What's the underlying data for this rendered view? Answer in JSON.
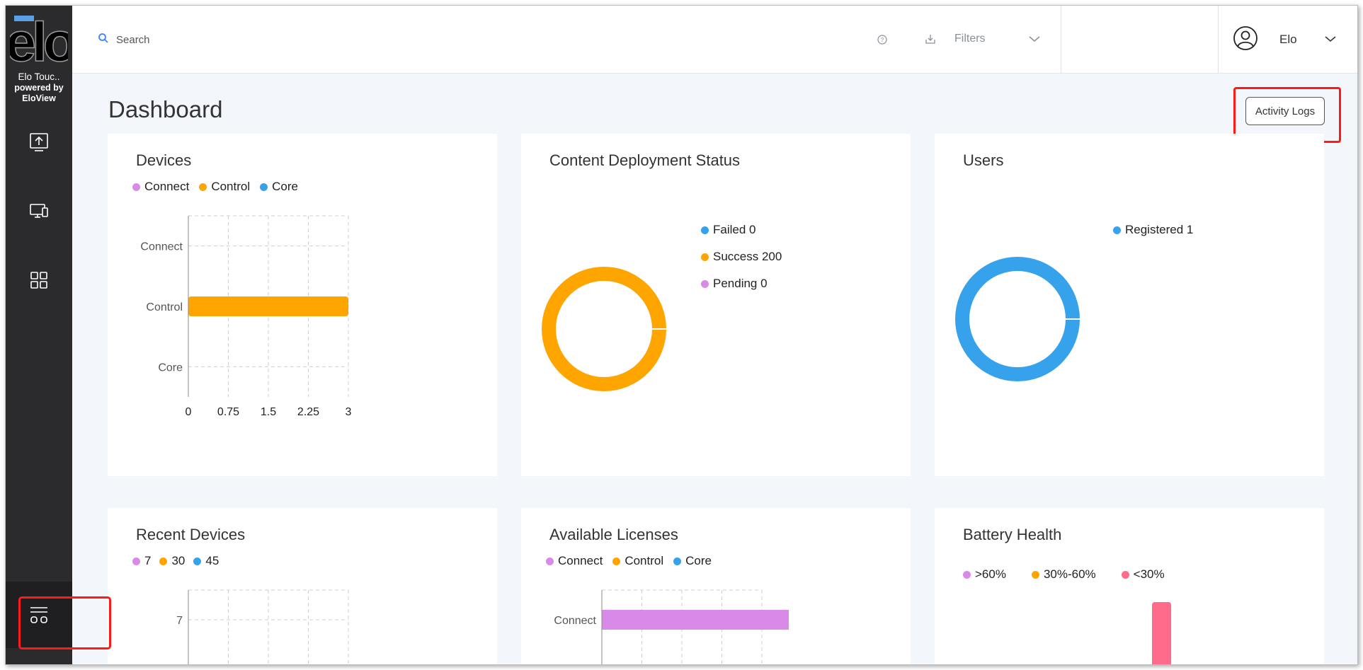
{
  "sidebar": {
    "logo_text": "elo",
    "brand_line1": "Elo Touc..",
    "brand_line2": "powered by EloView",
    "items": [
      {
        "icon": "upload-icon"
      },
      {
        "icon": "devices-icon"
      },
      {
        "icon": "apps-grid-icon"
      }
    ],
    "bottom_icon": "menu-toggle-icon"
  },
  "topbar": {
    "search_placeholder": "Search",
    "filters_label": "Filters",
    "user_name": "Elo"
  },
  "header": {
    "title": "Dashboard",
    "activity_logs_label": "Activity Logs"
  },
  "colors": {
    "connect": "#d98ae8",
    "control": "#ffa500",
    "core": "#36a2eb",
    "critical": "#ff6b8a",
    "highlight": "#ff1a1a"
  },
  "cards": {
    "devices": {
      "title": "Devices",
      "legend": [
        "Connect",
        "Control",
        "Core"
      ]
    },
    "content_deployment": {
      "title": "Content Deployment Status",
      "legend": [
        "Failed 0",
        "Success 200",
        "Pending 0"
      ]
    },
    "users": {
      "title": "Users",
      "legend": [
        "Registered 1"
      ]
    },
    "recent_devices": {
      "title": "Recent Devices",
      "legend": [
        "7",
        "30",
        "45"
      ]
    },
    "available_licenses": {
      "title": "Available Licenses",
      "legend": [
        "Connect",
        "Control",
        "Core"
      ]
    },
    "battery_health": {
      "title": "Battery Health",
      "legend": [
        ">60%",
        "30%-60%",
        "<30%"
      ]
    }
  },
  "chart_data": [
    {
      "type": "bar",
      "orientation": "horizontal",
      "title": "Devices",
      "categories": [
        "Connect",
        "Control",
        "Core"
      ],
      "series": [
        {
          "name": "Connect",
          "values": [
            0,
            0,
            0
          ]
        },
        {
          "name": "Control",
          "values": [
            0,
            3,
            0
          ]
        },
        {
          "name": "Core",
          "values": [
            0,
            0,
            0
          ]
        }
      ],
      "xticks": [
        "0",
        "0.75",
        "1.5",
        "2.25",
        "3"
      ],
      "xlim": [
        0,
        3
      ],
      "grid": true,
      "legend": "top-left"
    },
    {
      "type": "pie",
      "donut": true,
      "title": "Content Deployment Status",
      "labels": [
        "Failed",
        "Success",
        "Pending"
      ],
      "values": [
        0,
        200,
        0
      ],
      "legend": "right"
    },
    {
      "type": "pie",
      "donut": true,
      "title": "Users",
      "labels": [
        "Registered"
      ],
      "values": [
        1
      ],
      "legend": "right"
    },
    {
      "type": "bar",
      "orientation": "horizontal",
      "title": "Recent Devices",
      "categories": [
        "7"
      ],
      "series": [
        {
          "name": "7",
          "values": [
            0
          ]
        },
        {
          "name": "30",
          "values": [
            0
          ]
        },
        {
          "name": "45",
          "values": [
            0
          ]
        }
      ],
      "grid": true,
      "legend": "top-left"
    },
    {
      "type": "bar",
      "orientation": "horizontal",
      "title": "Available Licenses",
      "categories": [
        "Connect"
      ],
      "series": [
        {
          "name": "Connect",
          "values": [
            0.7
          ]
        },
        {
          "name": "Control",
          "values": [
            0
          ]
        },
        {
          "name": "Core",
          "values": [
            0
          ]
        }
      ],
      "grid": true,
      "legend": "top-left"
    },
    {
      "type": "bar",
      "title": "Battery Health",
      "series": [
        {
          "name": ">60%",
          "values": [
            0
          ]
        },
        {
          "name": "30%-60%",
          "values": [
            0
          ]
        },
        {
          "name": "<30%",
          "values": [
            1
          ]
        }
      ],
      "legend": "top-left"
    }
  ]
}
